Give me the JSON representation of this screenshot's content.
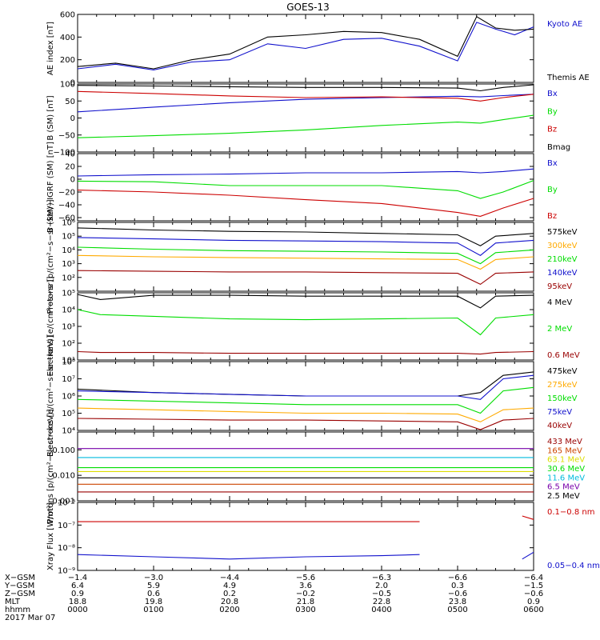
{
  "title": "GOES-13",
  "colors": {
    "black": "#000000",
    "blue": "#1010cc",
    "green": "#00dd00",
    "red": "#cc0000",
    "orange": "#ffaa00",
    "dark_red": "#990000",
    "brown": "#cc4400",
    "yellow": "#dddd00",
    "cyan": "#00bbdd",
    "purple": "#7700aa"
  },
  "chart_data": [
    {
      "type": "line",
      "ylabel": "AE index [nT]",
      "ylim": [
        0,
        600
      ],
      "ticks": [
        {
          "v": 0,
          "label": "0"
        },
        {
          "v": 200,
          "label": "200"
        },
        {
          "v": 400,
          "label": "400"
        },
        {
          "v": 600,
          "label": "600"
        }
      ],
      "x": [
        0,
        0.5,
        1,
        1.5,
        2,
        2.5,
        3,
        3.5,
        4,
        4.5,
        5,
        5.25,
        5.5,
        5.75,
        6
      ],
      "series": [
        {
          "name": "Kyoto AE",
          "color": "blue",
          "values": [
            120,
            160,
            110,
            180,
            200,
            340,
            300,
            380,
            390,
            320,
            190,
            530,
            470,
            420,
            490
          ]
        },
        {
          "name": "Themis AE",
          "color": "black",
          "values": [
            140,
            170,
            120,
            200,
            250,
            400,
            420,
            450,
            440,
            380,
            230,
            580,
            480,
            460,
            470
          ]
        }
      ]
    },
    {
      "type": "line",
      "ylabel": "B (SM) [nT]",
      "ylim": [
        -100,
        100
      ],
      "ticks": [
        {
          "v": -100,
          "label": "−100"
        },
        {
          "v": -50,
          "label": "−50"
        },
        {
          "v": 0,
          "label": "0"
        },
        {
          "v": 50,
          "label": "50"
        },
        {
          "v": 100,
          "label": "100"
        }
      ],
      "x": [
        0,
        1,
        2,
        3,
        4,
        5,
        5.3,
        5.6,
        6
      ],
      "series": [
        {
          "name": "Bx",
          "color": "blue",
          "values": [
            18,
            32,
            45,
            55,
            60,
            64,
            62,
            66,
            70
          ]
        },
        {
          "name": "By",
          "color": "green",
          "values": [
            -58,
            -52,
            -45,
            -35,
            -22,
            -12,
            -15,
            -5,
            8
          ]
        },
        {
          "name": "Bz",
          "color": "red",
          "values": [
            78,
            72,
            65,
            60,
            62,
            58,
            50,
            60,
            70
          ]
        },
        {
          "name": "Bmag",
          "color": "black",
          "values": [
            96,
            94,
            92,
            90,
            90,
            88,
            80,
            90,
            98
          ]
        }
      ]
    },
    {
      "type": "line",
      "ylabel": "B (SM)−IGRF (SM) [nT]",
      "ylim": [
        -65,
        40
      ],
      "ticks": [
        {
          "v": -60,
          "label": "−60"
        },
        {
          "v": -40,
          "label": "−40"
        },
        {
          "v": -20,
          "label": "−20"
        },
        {
          "v": 0,
          "label": "0"
        },
        {
          "v": 20,
          "label": "20"
        },
        {
          "v": 40,
          "label": "40"
        }
      ],
      "x": [
        0,
        1,
        2,
        3,
        4,
        5,
        5.3,
        5.6,
        6
      ],
      "series": [
        {
          "name": "Bx",
          "color": "blue",
          "values": [
            5,
            7,
            8,
            10,
            10,
            12,
            10,
            12,
            16
          ]
        },
        {
          "name": "By",
          "color": "green",
          "values": [
            -3,
            -4,
            -10,
            -10,
            -10,
            -18,
            -30,
            -20,
            -2
          ]
        },
        {
          "name": "Bz",
          "color": "red",
          "values": [
            -17,
            -20,
            -25,
            -32,
            -38,
            -52,
            -58,
            -45,
            -30
          ]
        }
      ]
    },
    {
      "type": "line",
      "ylabel": "Protons [p/(cm²−s−sr−keV)]",
      "scale": "log",
      "ylim": [
        1,
        6
      ],
      "ticks": [
        {
          "v": 2,
          "label": "10²"
        },
        {
          "v": 3,
          "label": "10³"
        },
        {
          "v": 4,
          "label": "10⁴"
        },
        {
          "v": 5,
          "label": "10⁵"
        },
        {
          "v": 6,
          "label": "10⁶"
        }
      ],
      "x": [
        0,
        1,
        2,
        3,
        4,
        5,
        5.3,
        5.5,
        6
      ],
      "series": [
        {
          "name": "575keV",
          "color": "black",
          "values": [
            5.6,
            5.45,
            5.35,
            5.3,
            5.2,
            5.1,
            4.3,
            5.0,
            5.2
          ]
        },
        {
          "name": "300keV",
          "color": "orange",
          "values": [
            3.6,
            3.5,
            3.45,
            3.4,
            3.35,
            3.3,
            2.6,
            3.3,
            3.5
          ]
        },
        {
          "name": "210keV",
          "color": "green",
          "values": [
            4.2,
            4.05,
            3.95,
            3.9,
            3.85,
            3.75,
            3.0,
            3.8,
            4.0
          ]
        },
        {
          "name": "140keV",
          "color": "blue",
          "values": [
            4.9,
            4.8,
            4.7,
            4.65,
            4.6,
            4.5,
            3.6,
            4.5,
            4.7
          ]
        },
        {
          "name": "95keV",
          "color": "dark_red",
          "values": [
            2.5,
            2.45,
            2.4,
            2.4,
            2.35,
            2.3,
            1.5,
            2.3,
            2.4
          ]
        }
      ]
    },
    {
      "type": "line",
      "ylabel": "Electrons [e/(cm²−s−sr)]",
      "scale": "log",
      "ylim": [
        1,
        5
      ],
      "ticks": [
        {
          "v": 1,
          "label": "10¹"
        },
        {
          "v": 2,
          "label": "10²"
        },
        {
          "v": 3,
          "label": "10³"
        },
        {
          "v": 4,
          "label": "10⁴"
        },
        {
          "v": 5,
          "label": "10⁵"
        }
      ],
      "x": [
        0,
        0.3,
        1,
        2,
        3,
        4,
        5,
        5.3,
        5.5,
        6
      ],
      "series": [
        {
          "name": "4 MeV",
          "color": "black",
          "values": [
            4.9,
            4.6,
            4.85,
            4.85,
            4.8,
            4.8,
            4.8,
            4.1,
            4.8,
            4.85
          ]
        },
        {
          "name": "2 MeV",
          "color": "green",
          "values": [
            4.0,
            3.7,
            3.6,
            3.45,
            3.4,
            3.45,
            3.5,
            2.5,
            3.5,
            3.7
          ]
        },
        {
          "name": "0.6 MeV",
          "color": "dark_red",
          "values": [
            1.5,
            1.45,
            1.45,
            1.4,
            1.4,
            1.4,
            1.4,
            1.35,
            1.45,
            1.5
          ]
        }
      ]
    },
    {
      "type": "line",
      "ylabel": "Electrons [e/(cm²−s−sr−keV)]",
      "scale": "log",
      "ylim": [
        4,
        8
      ],
      "ticks": [
        {
          "v": 4,
          "label": "10⁴"
        },
        {
          "v": 5,
          "label": "10⁵"
        },
        {
          "v": 6,
          "label": "10⁶"
        },
        {
          "v": 7,
          "label": "10⁷"
        },
        {
          "v": 8,
          "label": "10⁸"
        }
      ],
      "x": [
        0,
        1,
        2,
        3,
        4,
        5,
        5.3,
        5.6,
        6
      ],
      "series": [
        {
          "name": "475keV",
          "color": "black",
          "values": [
            6.4,
            6.2,
            6.1,
            6.0,
            6.0,
            6.0,
            6.2,
            7.2,
            7.4
          ]
        },
        {
          "name": "275keV",
          "color": "orange",
          "values": [
            5.3,
            5.2,
            5.1,
            5.0,
            5.0,
            4.95,
            4.5,
            5.2,
            5.3
          ]
        },
        {
          "name": "150keV",
          "color": "green",
          "values": [
            5.8,
            5.7,
            5.6,
            5.5,
            5.5,
            5.5,
            5.0,
            6.3,
            6.5
          ]
        },
        {
          "name": "75keV",
          "color": "blue",
          "values": [
            6.3,
            6.2,
            6.1,
            6.0,
            6.0,
            6.0,
            5.8,
            7.0,
            7.2
          ]
        },
        {
          "name": "40keV",
          "color": "dark_red",
          "values": [
            4.7,
            4.65,
            4.6,
            4.6,
            4.55,
            4.5,
            4.0,
            4.6,
            4.7
          ]
        }
      ]
    },
    {
      "type": "line",
      "ylabel": "Protons [p/(cm²−s−sr−keV)]",
      "scale": "log",
      "ylim": [
        -3,
        -0.3
      ],
      "ticks": [
        {
          "v": -3,
          "label": "0.001"
        },
        {
          "v": -2,
          "label": "0.010"
        },
        {
          "v": -1,
          "label": "0.100"
        }
      ],
      "x": [
        0,
        1,
        2,
        3,
        4,
        5,
        6
      ],
      "series": [
        {
          "name": "433 MeV",
          "color": "dark_red",
          "values": [
            -2.65,
            -2.65,
            -2.65,
            -2.65,
            -2.65,
            -2.65,
            -2.65
          ]
        },
        {
          "name": "165 MeV",
          "color": "brown",
          "values": [
            -2.35,
            -2.35,
            -2.35,
            -2.35,
            -2.35,
            -2.35,
            -2.35
          ]
        },
        {
          "name": "63.1 MeV",
          "color": "yellow",
          "values": [
            -1.85,
            -1.85,
            -1.85,
            -1.85,
            -1.85,
            -1.85,
            -1.85
          ]
        },
        {
          "name": "30.6 MeV",
          "color": "green",
          "values": [
            -1.7,
            -1.7,
            -1.7,
            -1.7,
            -1.7,
            -1.7,
            -1.7
          ]
        },
        {
          "name": "11.6 MeV",
          "color": "cyan",
          "values": [
            -1.3,
            -1.3,
            -1.3,
            -1.3,
            -1.3,
            -1.3,
            -1.3
          ]
        },
        {
          "name": "6.5 MeV",
          "color": "purple",
          "values": [
            -0.95,
            -0.95,
            -0.95,
            -0.95,
            -0.95,
            -0.95,
            -0.95
          ]
        },
        {
          "name": "2.5 MeV",
          "color": "black",
          "values": [
            -2.1,
            -2.1,
            -2.1,
            -2.1,
            -2.1,
            -2.1,
            -2.1
          ]
        }
      ]
    },
    {
      "type": "line",
      "ylabel": "Xray Flux [W/m²]",
      "scale": "log",
      "ylim": [
        -9,
        -6
      ],
      "ticks": [
        {
          "v": -9,
          "label": "10⁻⁹"
        },
        {
          "v": -8,
          "label": "10⁻⁸"
        },
        {
          "v": -7,
          "label": "10⁻⁷"
        },
        {
          "v": -6,
          "label": "10⁻⁶"
        }
      ],
      "x": [
        0,
        1,
        2,
        3,
        4,
        4.5,
        5.7,
        5.85,
        6
      ],
      "series": [
        {
          "name": "0.1−0.8 nm",
          "color": "red",
          "values": [
            -6.85,
            -6.85,
            -6.85,
            -6.85,
            -6.85,
            -6.85,
            null,
            -6.6,
            -6.75
          ]
        },
        {
          "name": "0.05−0.4 nm",
          "color": "blue",
          "values": [
            -8.3,
            -8.4,
            -8.5,
            -8.4,
            -8.35,
            -8.3,
            null,
            -8.5,
            -8.2
          ]
        }
      ]
    }
  ],
  "x_axis": {
    "rows": [
      {
        "label": "X−GSM",
        "values": [
          "−1.4",
          "−3.0",
          "−4.4",
          "−5.6",
          "−6.3",
          "−6.6",
          "−6.4"
        ]
      },
      {
        "label": "Y−GSM",
        "values": [
          "6.4",
          "5.9",
          "4.9",
          "3.6",
          "2.0",
          "0.3",
          "−1.5"
        ]
      },
      {
        "label": "Z−GSM",
        "values": [
          "0.9",
          "0.6",
          "0.2",
          "−0.2",
          "−0.5",
          "−0.6",
          "−0.6"
        ]
      },
      {
        "label": "MLT",
        "values": [
          "18.8",
          "19.8",
          "20.8",
          "21.8",
          "22.8",
          "23.8",
          "0.9"
        ]
      },
      {
        "label": "hhmm",
        "values": [
          "0000",
          "0100",
          "0200",
          "0300",
          "0400",
          "0500",
          "0600"
        ]
      }
    ],
    "date": "2017 Mar 07"
  }
}
